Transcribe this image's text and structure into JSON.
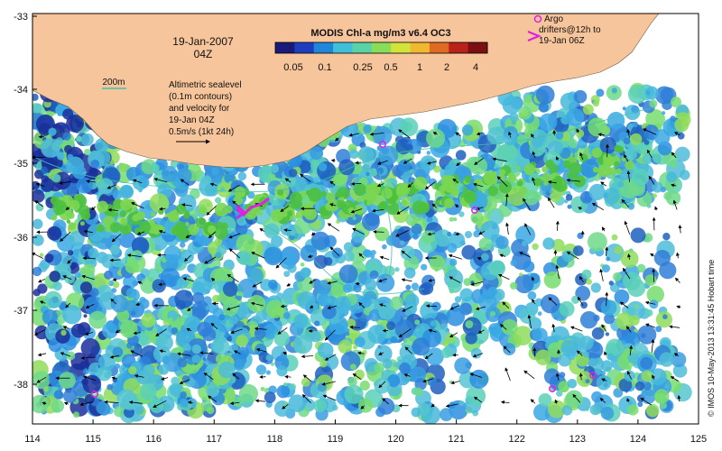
{
  "map": {
    "title_date": "19-Jan-2007",
    "title_time": "04Z",
    "colorbar": {
      "title": "MODIS Chl-a mg/m3 v6.4 OC3",
      "ticks": [
        "0.05",
        "0.1",
        "0.25",
        "0.5",
        "1",
        "2",
        "4"
      ],
      "colors": [
        "#1a1a7a",
        "#1d3fbf",
        "#1f86d9",
        "#3fc0d8",
        "#59d3a6",
        "#88de5a",
        "#d2e33a",
        "#f0b830",
        "#e06a22",
        "#b8221a",
        "#7a1010"
      ]
    },
    "contour_label": "200m",
    "velocity_note": {
      "line1": "Altimetric sealevel",
      "line2": "(0.1m contours)",
      "line3": "and velocity for",
      "line4": "19-Jan 04Z",
      "line5": "0.5m/s (1kt 24h)"
    },
    "argo_legend": {
      "line1": "Argo",
      "line2": "drifters@12h to",
      "line3": "19-Jan 06Z"
    },
    "x_ticks": [
      "114",
      "115",
      "116",
      "117",
      "118",
      "119",
      "120",
      "121",
      "122",
      "123",
      "124",
      "125"
    ],
    "y_ticks": [
      "-33",
      "-34",
      "-35",
      "-36",
      "-37",
      "-38"
    ],
    "credit": "© IMOS 10-May-2013 13:31:45 Hobart time",
    "colors": {
      "land": "#f6c59b",
      "ocean_nodata": "#ffffff",
      "argo": "#e020e0",
      "contour": "#40c0b0"
    }
  }
}
